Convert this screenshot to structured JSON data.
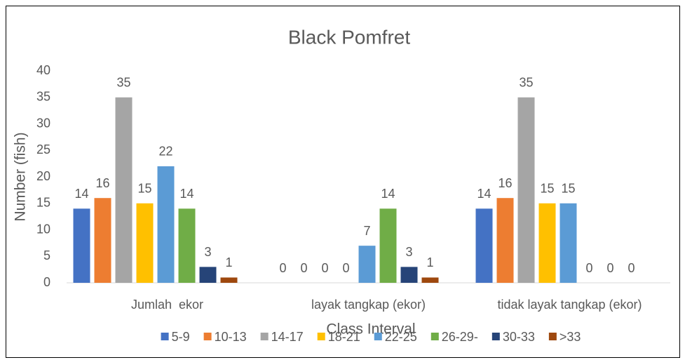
{
  "chart_data": {
    "type": "bar",
    "title": "Black Pomfret",
    "y_label": "Number (fish)",
    "x_label": "Class Interval",
    "categories": [
      "Jumlah  ekor",
      "layak tangkap (ekor)",
      "tidak layak tangkap (ekor)"
    ],
    "series": [
      {
        "name": "5-9",
        "color": "#4472c4",
        "values": [
          14,
          0,
          14
        ]
      },
      {
        "name": "10-13",
        "color": "#ed7d31",
        "values": [
          16,
          0,
          16
        ]
      },
      {
        "name": "14-17",
        "color": "#a5a5a5",
        "values": [
          35,
          0,
          35
        ]
      },
      {
        "name": "18-21",
        "color": "#ffc000",
        "values": [
          15,
          0,
          15
        ]
      },
      {
        "name": "22-25",
        "color": "#5b9bd5",
        "values": [
          22,
          7,
          15
        ]
      },
      {
        "name": "26-29-",
        "color": "#70ad47",
        "values": [
          14,
          14,
          0
        ]
      },
      {
        "name": "30-33",
        "color": "#264478",
        "values": [
          3,
          3,
          0
        ]
      },
      {
        "name": ">33",
        "color": "#9e480e",
        "values": [
          1,
          1,
          0
        ]
      }
    ],
    "ylim": [
      0,
      40
    ],
    "yticks": [
      0,
      5,
      10,
      15,
      20,
      25,
      30,
      35,
      40
    ],
    "grid": false,
    "legend": "bottom"
  }
}
